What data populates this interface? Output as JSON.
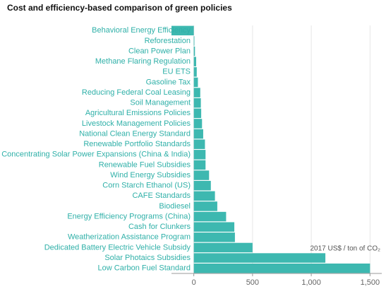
{
  "chart_data": {
    "type": "bar",
    "orientation": "horizontal",
    "title": "Cost and efficiency-based comparison of green policies",
    "x_label": "2017 US$ / ton of CO₂",
    "categories": [
      "Behavioral Energy Efficiency",
      "Reforestation",
      "Clean Power Plan",
      "Methane Flaring Regulation",
      "EU ETS",
      "Gasoline Tax",
      "Reducing Federal Coal Leasing",
      "Soil Management",
      "Agricultural Emissions Policies",
      "Livestock Management Policies",
      "National Clean Energy Standard",
      "Renewable Portfolio Standards",
      "Concentrating Solar Power Expansions (China & India)",
      "Renewable Fuel Subsidies",
      "Wind Energy Subsidies",
      "Corn Starch Ethanol (US)",
      "CAFE Standards",
      "Biodiesel",
      "Energy Efficiency Programs (China)",
      "Cash for Clunkers",
      "Weatherization Assistance Program",
      "Dedicated Battery Electric Vehicle Subsidy",
      "Solar Photaics Subsidies",
      "Low Carbon Fuel Standard"
    ],
    "values": [
      -190,
      5,
      10,
      20,
      25,
      35,
      55,
      60,
      63,
      70,
      80,
      95,
      100,
      100,
      130,
      145,
      180,
      200,
      275,
      345,
      350,
      500,
      1120,
      1500
    ],
    "color": "#3db8b0",
    "xlim": [
      -190,
      1600
    ],
    "xticks": [
      0,
      500,
      {
        "value": 1000,
        "label": "1,000"
      },
      {
        "value": 1500,
        "label": "1,500"
      }
    ],
    "grid": true
  }
}
